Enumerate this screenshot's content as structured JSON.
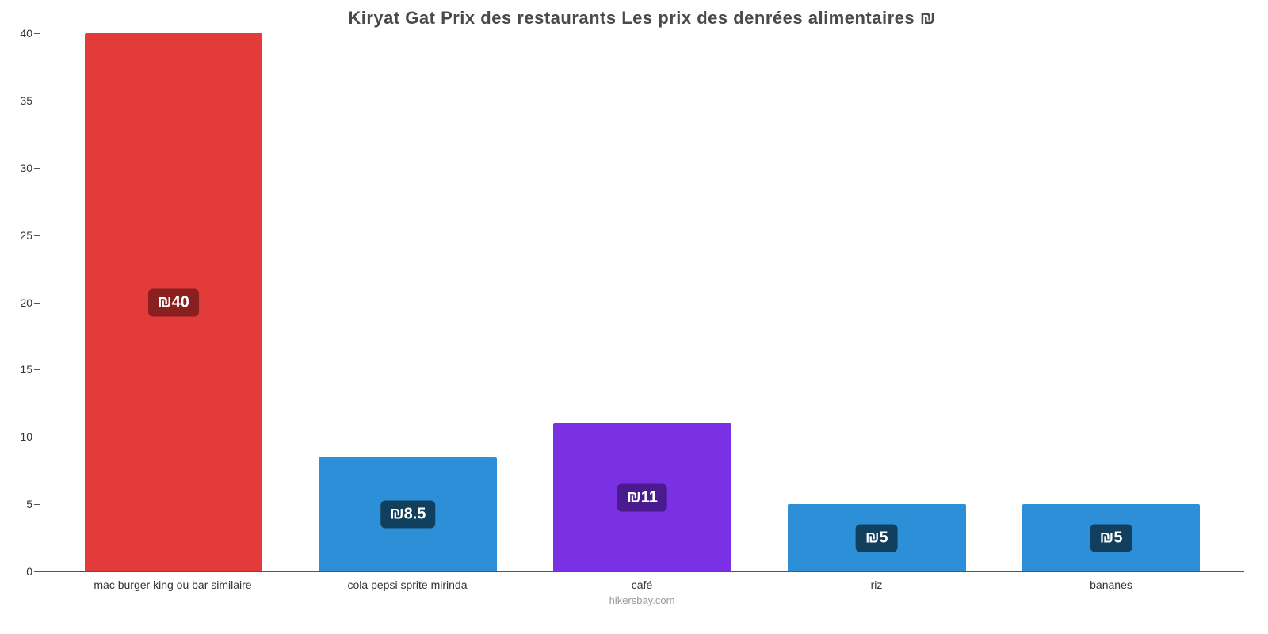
{
  "chart": {
    "type": "bar",
    "title": "Kiryat Gat Prix des restaurants Les prix des denrées alimentaires ₪",
    "title_fontsize": 22,
    "title_color": "#4a4a4a",
    "background_color": "#ffffff",
    "axis_color": "#555555",
    "ymax": 40,
    "ytick_step": 5,
    "yticks": [
      0,
      5,
      10,
      15,
      20,
      25,
      30,
      35,
      40
    ],
    "tick_fontsize": 14,
    "bar_width_pct": 76,
    "value_badge_fontsize": 20,
    "value_badge_radius": 6,
    "footer": "hikersbay.com",
    "footer_color": "#9a9a9a",
    "categories": [
      "mac burger king ou bar similaire",
      "cola pepsi sprite mirinda",
      "café",
      "riz",
      "bananes"
    ],
    "values": [
      40,
      8.5,
      11,
      5,
      5
    ],
    "value_labels": [
      "₪40",
      "₪8.5",
      "₪11",
      "₪5",
      "₪5"
    ],
    "bar_colors": [
      "#e33a3a",
      "#2e8fd9",
      "#7a30e3",
      "#2e8fd9",
      "#2e8fd9"
    ],
    "badge_colors": [
      "#8a1f1f",
      "#11405f",
      "#4a1a8f",
      "#11405f",
      "#11405f"
    ]
  }
}
